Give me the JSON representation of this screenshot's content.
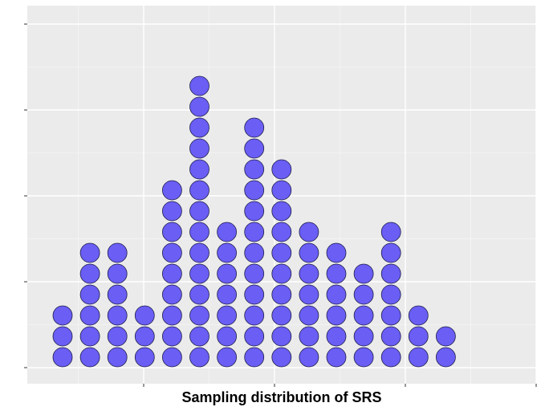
{
  "chart_data": {
    "type": "dotplot",
    "xlabel": "Sampling distribution of SRS",
    "ylabel": "",
    "title": "",
    "x_tick_labels_shown": false,
    "y_tick_labels_shown": false,
    "columns": [
      {
        "index": 1,
        "count": 3
      },
      {
        "index": 2,
        "count": 6
      },
      {
        "index": 3,
        "count": 6
      },
      {
        "index": 4,
        "count": 3
      },
      {
        "index": 5,
        "count": 9
      },
      {
        "index": 6,
        "count": 14
      },
      {
        "index": 7,
        "count": 7
      },
      {
        "index": 8,
        "count": 12
      },
      {
        "index": 9,
        "count": 10
      },
      {
        "index": 10,
        "count": 7
      },
      {
        "index": 11,
        "count": 6
      },
      {
        "index": 12,
        "count": 5
      },
      {
        "index": 13,
        "count": 7
      },
      {
        "index": 14,
        "count": 3
      },
      {
        "index": 15,
        "count": 2
      }
    ],
    "dot_fill": "#6a5ef5",
    "dot_stroke": "#1f1f4a",
    "panel_background": "#ebebeb",
    "grid": true
  }
}
